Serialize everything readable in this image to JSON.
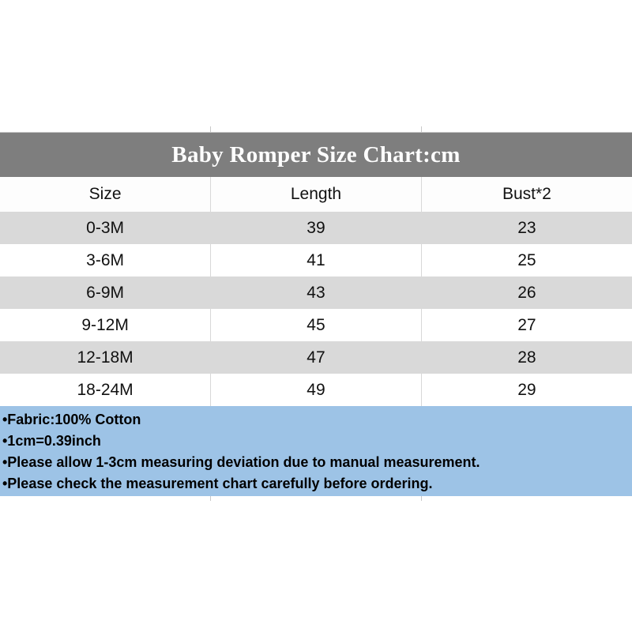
{
  "colors": {
    "title_bar_bg": "#7e7e7e",
    "title_text": "#ffffff",
    "alt_row_bg": "#d9d9d9",
    "notes_bg": "#9dc3e6",
    "table_text": "#111111"
  },
  "chart_data": {
    "type": "table",
    "title": "Baby Romper Size Chart:cm",
    "columns": [
      "Size",
      "Length",
      "Bust*2"
    ],
    "rows": [
      [
        "0-3M",
        "39",
        "23"
      ],
      [
        "3-6M",
        "41",
        "25"
      ],
      [
        "6-9M",
        "43",
        "26"
      ],
      [
        "9-12M",
        "45",
        "27"
      ],
      [
        "12-18M",
        "47",
        "28"
      ],
      [
        "18-24M",
        "49",
        "29"
      ]
    ],
    "annotations": [
      "•Fabric:100% Cotton",
      "•1cm=0.39inch",
      "•Please allow 1-3cm measuring deviation due to manual measurement.",
      "•Please check the measurement chart carefully before ordering."
    ],
    "layout_hints": {
      "columns_equal_thirds": true,
      "alternating_row_shading": true,
      "units": "cm"
    }
  }
}
